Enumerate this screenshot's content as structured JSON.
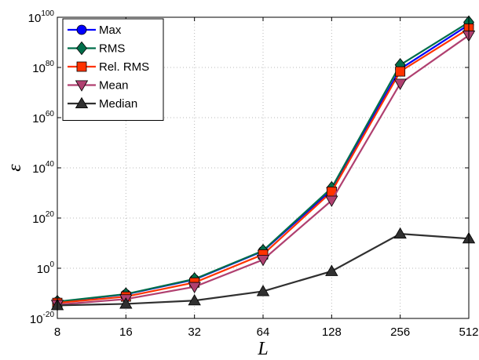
{
  "chart_data": {
    "type": "line",
    "xlabel": "L",
    "ylabel": "ε",
    "x": [
      8,
      16,
      32,
      64,
      128,
      256,
      512
    ],
    "x_tick_labels": [
      "8",
      "16",
      "32",
      "64",
      "128",
      "256",
      "512"
    ],
    "y_scale": "log",
    "ylim_exponent": [
      -20,
      100
    ],
    "y_tick_exponents": [
      -20,
      0,
      20,
      40,
      60,
      80,
      100
    ],
    "y_tick_base": "10",
    "grid": true,
    "legend_position": "top-left",
    "series": [
      {
        "name": "Max",
        "color": "#0000ff",
        "marker": "circle",
        "log10_values": [
          -13.4,
          -10.4,
          -4.5,
          6.8,
          31.2,
          79.4,
          97.0
        ]
      },
      {
        "name": "RMS",
        "color": "#006e4a",
        "marker": "diamond",
        "log10_values": [
          -13.3,
          -10.3,
          -4.3,
          7.0,
          32.0,
          81.0,
          98.0
        ]
      },
      {
        "name": "Rel. RMS",
        "color": "#ff3300",
        "marker": "square",
        "log10_values": [
          -13.8,
          -11.3,
          -5.7,
          5.5,
          30.5,
          78.4,
          95.5
        ]
      },
      {
        "name": "Mean",
        "color": "#b04070",
        "marker": "triangle-down",
        "log10_values": [
          -14.5,
          -12.3,
          -7.4,
          3.4,
          27.0,
          73.6,
          92.8
        ]
      },
      {
        "name": "Median",
        "color": "#303030",
        "marker": "triangle-up",
        "log10_values": [
          -14.8,
          -14.2,
          -12.9,
          -9.2,
          -1.2,
          13.7,
          11.8
        ]
      }
    ]
  }
}
